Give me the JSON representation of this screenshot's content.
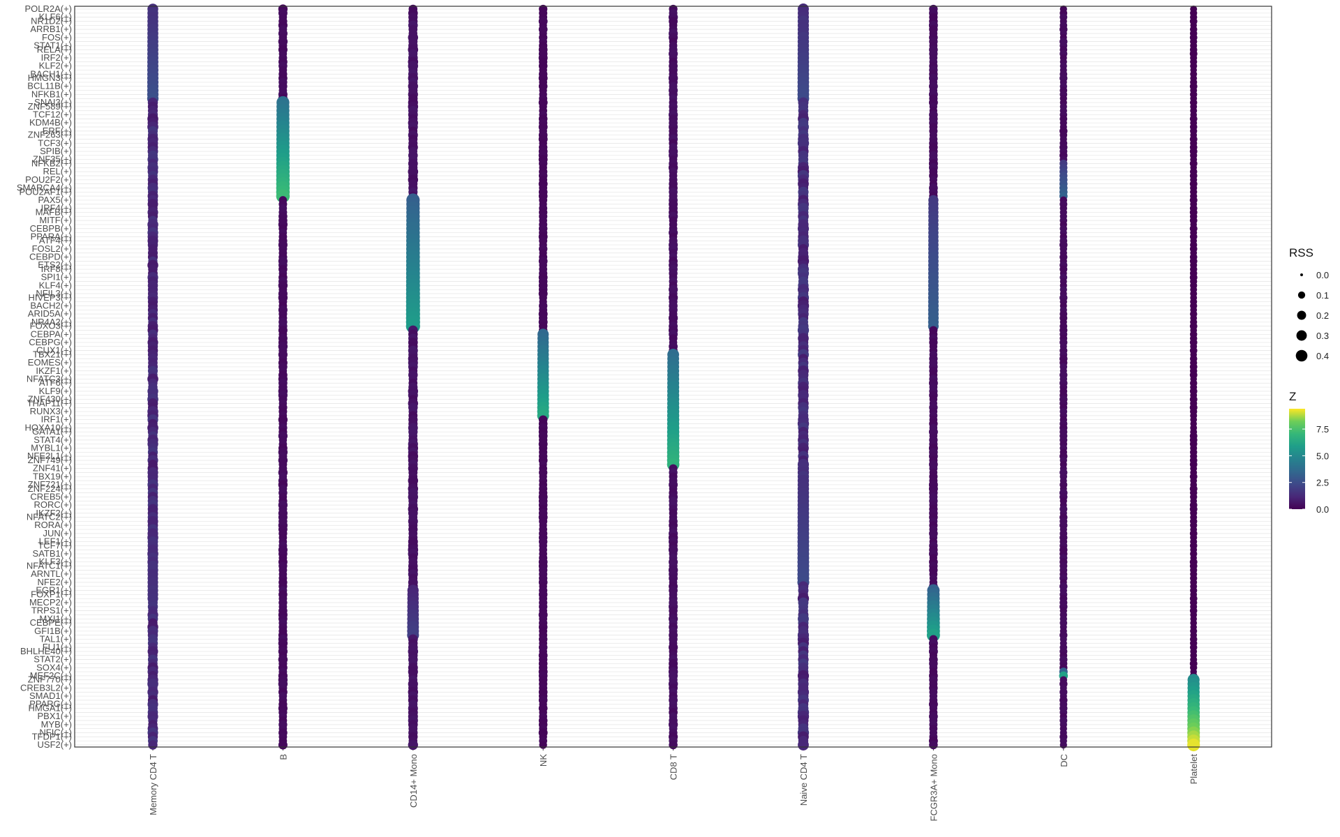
{
  "chart_data": {
    "type": "scatter",
    "subtype": "dot-plot",
    "title": "",
    "xlabel": "",
    "ylabel": "",
    "x_categories": [
      "Memory CD4 T",
      "B",
      "CD14+ Mono",
      "NK",
      "CD8 T",
      "Naive CD4 T",
      "FCGR3A+ Mono",
      "DC",
      "Platelet"
    ],
    "y_labels_top_visible": [
      "POLR2A(+)",
      "KLF6(+)",
      "NR1D2(+)",
      "ARRB1(+)",
      "FOS(+)",
      "STAT1(+)",
      "RELA(+)",
      "IRF2(+)",
      "KLF2(+)",
      "BACH1(+)",
      "HMGN3(+)",
      "BCL11B(+)",
      "NFKB1(+)",
      "SNAI3(+)",
      "ZNF589(+)",
      "TCF12(+)",
      "KDM4B(+)",
      "ERF(+)",
      "ZNF263(+)",
      "TCF3(+)",
      "SPIB(+)",
      "ZNF35(+)",
      "NFKB2(+)",
      "REL(+)",
      "POU2F2(+)",
      "SMARCA4(+)",
      "POU2AF1(+)",
      "PAX5(+)",
      "IRF4(+)",
      "MAFB(+)",
      "MITF(+)",
      "CEBPB(+)",
      "PPARA(+)",
      "ATF4(+)",
      "FOSL2(+)",
      "CEBPD(+)",
      "ETS2(+)",
      "IRF8(+)",
      "SPI1(+)",
      "KLF4(+)",
      "NFIL3(+)",
      "HIVEP3(+)",
      "BACH2(+)",
      "ARID5A(+)",
      "NR4A2(+)",
      "FOXO3(+)",
      "CEBPA(+)",
      "CEBPG(+)",
      "CUX1(+)",
      "TBX21(+)",
      "EOMES(+)",
      "IKZF1(+)",
      "NFATC3(+)",
      "ATF6(+)",
      "KLF9(+)",
      "ZNF430(+)",
      "THAP11(+)",
      "RUNX3(+)",
      "IRF1(+)",
      "HOXA10(+)",
      "GATA1(+)",
      "STAT4(+)",
      "MYBL1(+)",
      "NFE2L1(+)",
      "ZNF749(+)",
      "ZNF41(+)",
      "TBX19(+)",
      "ZNF721(+)",
      "ZNF224(+)",
      "CREB5(+)",
      "RORC(+)",
      "IKZF2(+)",
      "NFATC2(+)",
      "RORA(+)",
      "JUN(+)",
      "LEF1(+)",
      "TCF7(+)",
      "SATB1(+)",
      "KLF3(+)",
      "NFATC1(+)",
      "ARNTL(+)",
      "NFE2(+)",
      "EGR1(+)",
      "FOXP1(+)",
      "MECP2(+)",
      "TRPS1(+)",
      "MXI1(+)",
      "CEBPE(+)",
      "GFI1B(+)",
      "TAL1(+)",
      "FLI1(+)",
      "BHLHE40(+)",
      "STAT2(+)",
      "SOX4(+)",
      "MEF2C(+)",
      "ZNF770(+)",
      "CREB3L2(+)",
      "SMAD1(+)",
      "PPARG(+)",
      "HMGA1(+)",
      "PBX1(+)",
      "MYB(+)",
      "NFIC(+)",
      "TFDP1(+)",
      "USF2(+)"
    ],
    "size_legend_title": "RSS",
    "size_legend_values": [
      "0.0",
      "0.1",
      "0.2",
      "0.3",
      "0.4"
    ],
    "color_legend_title": "Z",
    "color_legend_values": [
      "0.0",
      "2.5",
      "5.0",
      "7.5"
    ],
    "color_range": [
      0,
      9.4
    ],
    "size_range": [
      0,
      0.45
    ],
    "colormap": "viridis",
    "grid": true,
    "legend_position": "right",
    "n_rows": 182,
    "series_profiles": [
      {
        "column": "Memory CD4 T",
        "base_z": 1.2,
        "base_rss": 0.16,
        "peaks": [
          {
            "rows": [
              0,
              22
            ],
            "z": 2.6,
            "rss": 0.22
          },
          {
            "rows": [
              115,
              145
            ],
            "z": 1.5,
            "rss": 0.18
          }
        ]
      },
      {
        "column": "B",
        "base_z": 0.3,
        "base_rss": 0.1,
        "peaks": [
          {
            "rows": [
              23,
              46
            ],
            "z": 7.2,
            "rss": 0.36
          }
        ]
      },
      {
        "column": "CD14+ Mono",
        "base_z": 0.5,
        "base_rss": 0.13,
        "peaks": [
          {
            "rows": [
              47,
              78
            ],
            "z": 5.8,
            "rss": 0.4
          },
          {
            "rows": [
              143,
              154
            ],
            "z": 2.0,
            "rss": 0.25
          }
        ]
      },
      {
        "column": "NK",
        "base_z": 0.2,
        "base_rss": 0.09,
        "peaks": [
          {
            "rows": [
              80,
              100
            ],
            "z": 6.4,
            "rss": 0.25
          }
        ]
      },
      {
        "column": "CD8 T",
        "base_z": 0.4,
        "base_rss": 0.1,
        "peaks": [
          {
            "rows": [
              85,
              112
            ],
            "z": 6.8,
            "rss": 0.28
          }
        ]
      },
      {
        "column": "Naive CD4 T",
        "base_z": 1.3,
        "base_rss": 0.18,
        "peaks": [
          {
            "rows": [
              0,
              22
            ],
            "z": 2.4,
            "rss": 0.24
          },
          {
            "rows": [
              112,
              141
            ],
            "z": 2.4,
            "rss": 0.25
          }
        ]
      },
      {
        "column": "FCGR3A+ Mono",
        "base_z": 0.3,
        "base_rss": 0.09,
        "peaks": [
          {
            "rows": [
              47,
              78
            ],
            "z": 3.2,
            "rss": 0.18
          },
          {
            "rows": [
              143,
              154
            ],
            "z": 6.0,
            "rss": 0.33
          }
        ]
      },
      {
        "column": "DC",
        "base_z": 0.3,
        "base_rss": 0.06,
        "peaks": [
          {
            "rows": [
              38,
              46
            ],
            "z": 3.3,
            "rss": 0.08
          },
          {
            "rows": [
              163,
              164
            ],
            "z": 6.0,
            "rss": 0.1
          }
        ]
      },
      {
        "column": "Platelet",
        "base_z": 0.0,
        "base_rss": 0.05,
        "peaks": [
          {
            "rows": [
              165,
              181
            ],
            "z": 9.2,
            "rss": 0.3
          }
        ]
      }
    ]
  }
}
